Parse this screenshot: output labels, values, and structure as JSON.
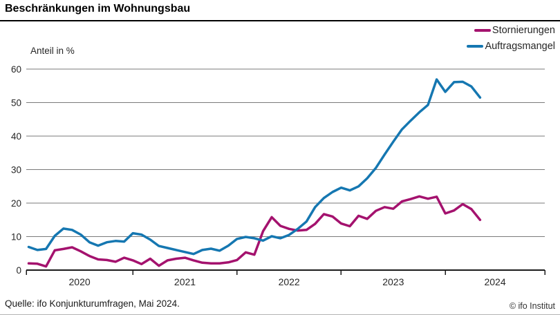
{
  "header": {
    "title": "Beschränkungen im Wohnungsbau"
  },
  "footer": {
    "source": "Quelle: ifo Konjunkturumfragen, Mai 2024.",
    "copyright": "© ifo Institut"
  },
  "chart_data": {
    "type": "line",
    "title": "Beschränkungen im Wohnungsbau",
    "ylabel": "Anteil in %",
    "xlabel": "",
    "ylim": [
      0,
      60
    ],
    "grid": true,
    "legend_position": "top-right",
    "frequency": "monthly",
    "x_range": [
      "2020-01",
      "2024-05"
    ],
    "x_tick_years": [
      "2020",
      "2021",
      "2022",
      "2023",
      "2024"
    ],
    "y_tick_labels": [
      "0",
      "10",
      "20",
      "30",
      "40",
      "50",
      "60"
    ],
    "colors": {
      "grid": "#7a7a7a",
      "axis": "#1a1a1a",
      "text": "#262626"
    },
    "series": [
      {
        "name": "Stornierungen",
        "color": "#a4126e",
        "values": [
          2.0,
          1.9,
          1.1,
          5.9,
          6.3,
          6.8,
          5.6,
          4.2,
          3.2,
          3.0,
          2.5,
          3.7,
          2.9,
          1.8,
          3.4,
          1.3,
          2.9,
          3.4,
          3.7,
          2.9,
          2.2,
          2.0,
          2.0,
          2.3,
          3.0,
          5.3,
          4.6,
          11.6,
          15.8,
          13.2,
          12.3,
          11.8,
          12.0,
          13.8,
          16.7,
          16.0,
          13.9,
          13.1,
          16.2,
          15.3,
          17.7,
          18.8,
          18.3,
          20.5,
          21.2,
          22.0,
          21.3,
          21.9,
          16.9,
          17.8,
          19.7,
          18.2,
          15.0
        ]
      },
      {
        "name": "Auftragsmangel",
        "color": "#1577b1",
        "values": [
          6.9,
          6.0,
          6.3,
          10.2,
          12.4,
          12.0,
          10.6,
          8.3,
          7.3,
          8.3,
          8.7,
          8.5,
          11.0,
          10.6,
          9.1,
          7.2,
          6.6,
          6.0,
          5.4,
          4.8,
          6.0,
          6.4,
          5.8,
          7.3,
          9.3,
          9.9,
          9.5,
          8.8,
          10.1,
          9.5,
          10.5,
          12.3,
          14.5,
          18.8,
          21.5,
          23.3,
          24.6,
          23.8,
          25.0,
          27.4,
          30.5,
          34.5,
          38.3,
          42.0,
          44.6,
          47.1,
          49.3,
          56.9,
          53.2,
          56.1,
          56.2,
          54.8,
          51.5
        ]
      }
    ]
  }
}
